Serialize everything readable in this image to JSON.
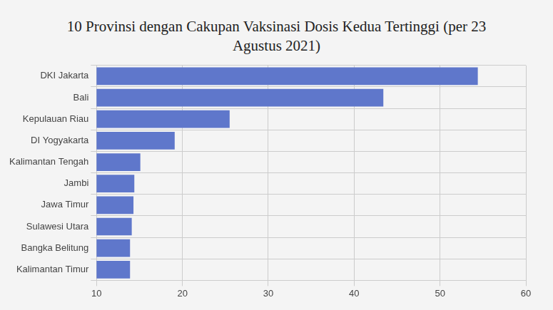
{
  "chart_data": {
    "type": "bar",
    "orientation": "horizontal",
    "title": "10 Provinsi dengan Cakupan Vaksinasi Dosis Kedua Tertinggi (per 23 Agustus 2021)",
    "categories": [
      "DKI Jakarta",
      "Bali",
      "Kepulauan Riau",
      "DI Yogyakarta",
      "Kalimantan Tengah",
      "Jambi",
      "Jawa Timur",
      "Sulawesi Utara",
      "Bangka Belitung",
      "Kalimantan Timur"
    ],
    "values": [
      54.4,
      43.4,
      25.5,
      19.1,
      15.1,
      14.4,
      14.3,
      14.1,
      13.9,
      13.9
    ],
    "color": "#5f77cb",
    "xlim": [
      10,
      60
    ],
    "xticks": [
      10,
      20,
      30,
      40,
      50,
      60
    ],
    "grid": true
  }
}
